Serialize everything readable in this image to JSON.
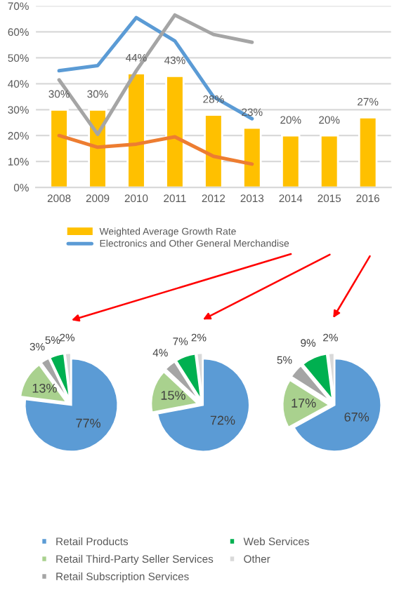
{
  "chart_data": [
    {
      "type": "bar",
      "categories": [
        "2008",
        "2009",
        "2010",
        "2011",
        "2012",
        "2013",
        "2014",
        "2015",
        "2016"
      ],
      "series": [
        {
          "name": "Weighted Average Growth Rate",
          "type": "bar",
          "color": "#ffc000",
          "values": [
            30,
            30,
            44,
            43,
            28,
            23,
            20,
            20,
            27
          ],
          "value_labels": [
            "30%",
            "30%",
            "44%",
            "43%",
            "28%",
            "23%",
            "20%",
            "20%",
            "27%"
          ]
        },
        {
          "name": "Electronics and Other General Merchandise",
          "type": "line",
          "color": "#5b9bd5",
          "values": [
            45,
            47,
            65.5,
            56.5,
            35,
            26.5,
            null,
            null,
            null
          ]
        },
        {
          "type": "line",
          "color": "#a5a5a5",
          "values": [
            41.5,
            20.5,
            45,
            66.5,
            59,
            56,
            null,
            null,
            null
          ]
        },
        {
          "type": "line",
          "color": "#ed7d31",
          "values": [
            20,
            15.5,
            16.7,
            19.5,
            12,
            9,
            null,
            null,
            null
          ]
        }
      ],
      "ylim": [
        0,
        70
      ],
      "yticks": [
        {
          "value": 0,
          "label": "0%"
        },
        {
          "value": 10,
          "label": "10%"
        },
        {
          "value": 20,
          "label": "20%"
        },
        {
          "value": 30,
          "label": "30%"
        },
        {
          "value": 40,
          "label": "40%"
        },
        {
          "value": 50,
          "label": "50%"
        },
        {
          "value": 60,
          "label": "60%"
        },
        {
          "value": 70,
          "label": "70%"
        }
      ],
      "grid": "y",
      "legend": "bottom"
    },
    {
      "type": "pie",
      "categories": [
        "Retail Products",
        "Retail Third-Party Seller Services",
        "Retail Subscription Services",
        "Web Services",
        "Other"
      ],
      "values": [
        77,
        13,
        3,
        5,
        2
      ],
      "value_labels": [
        "77%",
        "13%",
        "3%",
        "5%",
        "2%"
      ],
      "colors": [
        "#5b9bd5",
        "#a9d18e",
        "#a5a5a5",
        "#00b050",
        "#d9d9d9"
      ],
      "legend": "bottom"
    },
    {
      "type": "pie",
      "categories": [
        null,
        null,
        null,
        null,
        null
      ],
      "values": [
        72,
        15,
        4,
        7,
        2
      ],
      "value_labels": [
        "72%",
        "15%",
        "4%",
        "7%",
        "2%"
      ],
      "colors": [
        "#5b9bd5",
        "#a9d18e",
        "#a5a5a5",
        "#00b050",
        "#d9d9d9"
      ]
    },
    {
      "type": "pie",
      "categories": [
        null,
        null,
        null,
        null,
        null
      ],
      "values": [
        67,
        17,
        5,
        9,
        2
      ],
      "value_labels": [
        "67%",
        "17%",
        "5%",
        "9%",
        "2%"
      ],
      "colors": [
        "#5b9bd5",
        "#a9d18e",
        "#a5a5a5",
        "#00b050",
        "#d9d9d9"
      ]
    }
  ]
}
